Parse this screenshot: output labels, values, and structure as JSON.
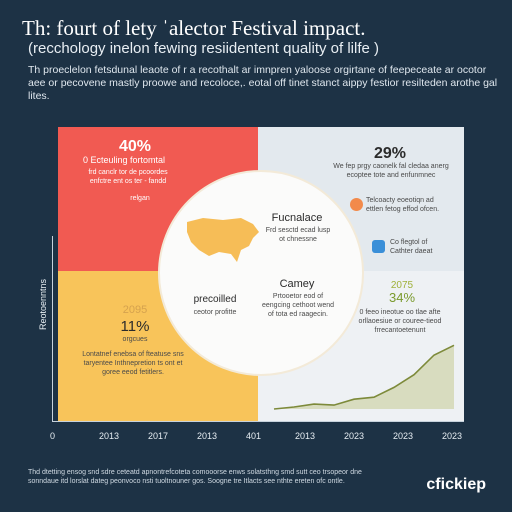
{
  "header": {
    "title": "Th: fourt of lety ˈalector Festival impact.",
    "subtitle": "(recchology inelon fewing resiidentent quality of lilfe )",
    "intro": "Th proeclelon fetsdunal leaote of r a recothalt ar imnpren yaloose orgirtane of feepeceate ar ocotor aee or pecovene mastly proowe and recoloce,. eotal off tinet stanct aippy festior resilteden arothe gal lites."
  },
  "quadrants": {
    "top_left": {
      "pct": "40%",
      "heading": "0 Ecteuling fortomtal",
      "body": "frd canclr tor de pcoordes enfctre ent os ter - fandd",
      "note": "relgan"
    },
    "top_right": {
      "pct": "29%",
      "body": "We fep prgy caonelk fal cledaa anerg ecoptee tote and enfunmnec",
      "item1": "Telcoacty eoeotiqn ad ettlen fetog effod ofcen.",
      "item2": "Co flegtol of Cathter daeat"
    },
    "center": {
      "label_top": "Fucnalace",
      "body_top": "Frd sesctd ecad lusp ot chnessne",
      "label_left": "precoilled",
      "sub_left": "ceotor profitte",
      "label_bottom": "Camey",
      "body_bottom": "Prtooetor eod of eengcing cethoot wend of tota ed raagecin."
    },
    "bottom_left": {
      "pct_faint": "2095",
      "pct": "11%",
      "sub": "orgcues",
      "body": "Lontatnef enebsa of fteatuse sns taryentee Inthnepretion ts ont et goree eeod fetitlers."
    },
    "bottom_right": {
      "pct_faint": "2075",
      "pct": "34%",
      "body": "0 feeo ineotue oo tlae afte orllaoesiue or couree-tieod frrecantoetenunt"
    }
  },
  "chart_data": {
    "type": "area",
    "ylabel": "Reotoenntns",
    "tick_labels": [
      "0",
      "2013",
      "2017",
      "2013",
      "401",
      "2013",
      "2023",
      "2023",
      "2023"
    ],
    "series_values": [
      0,
      0.02,
      0.05,
      0.04,
      0.1,
      0.12,
      0.22,
      0.35,
      0.55,
      0.65
    ]
  },
  "footer": {
    "text": "Thd dtetting ensog snd sdre ceteatd apnontrefcoteta comooorse enws solatsthng smd sutt ceo trsopeor dne sonndaue itd lorslat dateg peonvoco nsti tuoltnouner gos. Soogne tre Itlacts see nthte ereten ofc ontle."
  },
  "brand": {
    "name": "cfickiep"
  },
  "colors": {
    "background": "#1d3245",
    "red": "#f15a52",
    "yellow": "#f8c45a",
    "light": "#e3e9ee",
    "map": "#f6bd57",
    "line": "#7d8a3a"
  }
}
